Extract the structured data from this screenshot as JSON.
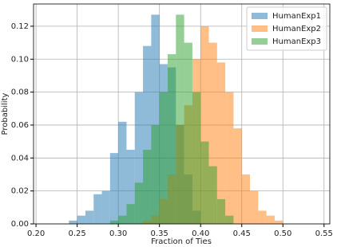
{
  "chart_data": {
    "type": "histogram",
    "xlabel": "Fraction of Ties",
    "ylabel": "Probability",
    "xlim": [
      0.197,
      0.557
    ],
    "ylim": [
      0,
      0.1335
    ],
    "xticks": [
      {
        "value": 0.2,
        "label": "0.20"
      },
      0.25,
      {
        "value": 0.3,
        "label": "0.30"
      },
      0.35,
      {
        "value": 0.4,
        "label": "0.40"
      },
      0.45,
      {
        "value": 0.5,
        "label": "0.50"
      },
      0.55
    ],
    "yticks": [
      {
        "value": 0,
        "label": "0.00"
      },
      0.02,
      0.04,
      0.06,
      0.08,
      {
        "value": 0.1,
        "label": "0.10"
      },
      0.12
    ],
    "grid": true,
    "legend": "upper right",
    "opacity": 0.5,
    "series": [
      {
        "name": "HumanExp1",
        "color": "#1f77b4",
        "bins": [
          0.24,
          0.25,
          0.26,
          0.27,
          0.28,
          0.29,
          0.3,
          0.31,
          0.32,
          0.33,
          0.34,
          0.35,
          0.36,
          0.37,
          0.38,
          0.39,
          0.4
        ],
        "values": [
          0.002,
          0.005,
          0.008,
          0.018,
          0.02,
          0.043,
          0.062,
          0.045,
          0.08,
          0.108,
          0.127,
          0.097,
          0.095,
          0.06,
          0.03,
          0.008
        ]
      },
      {
        "name": "HumanExp2",
        "color": "#ff7f0e",
        "bins": [
          0.33,
          0.34,
          0.35,
          0.36,
          0.37,
          0.38,
          0.39,
          0.4,
          0.41,
          0.42,
          0.43,
          0.44,
          0.45,
          0.46,
          0.47,
          0.48,
          0.49,
          0.5
        ],
        "values": [
          0.002,
          0.005,
          0.015,
          0.03,
          0.06,
          0.072,
          0.1,
          0.12,
          0.11,
          0.098,
          0.08,
          0.058,
          0.03,
          0.02,
          0.008,
          0.005,
          0.002
        ]
      },
      {
        "name": "HumanExp3",
        "color": "#2ca02c",
        "bins": [
          0.29,
          0.3,
          0.31,
          0.32,
          0.33,
          0.34,
          0.35,
          0.36,
          0.37,
          0.38,
          0.39,
          0.4,
          0.41,
          0.42,
          0.43,
          0.44
        ],
        "values": [
          0.002,
          0.005,
          0.012,
          0.025,
          0.045,
          0.06,
          0.08,
          0.103,
          0.127,
          0.11,
          0.08,
          0.05,
          0.035,
          0.015,
          0.005
        ]
      }
    ]
  }
}
